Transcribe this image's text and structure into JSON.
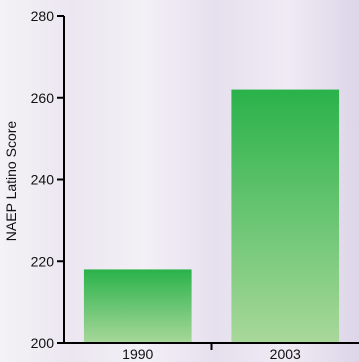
{
  "chart_data": {
    "type": "bar",
    "categories": [
      "1990",
      "2003"
    ],
    "values": [
      218,
      262
    ],
    "title": "",
    "xlabel": "",
    "ylabel": "NAEP Latino Score",
    "ylim": [
      200,
      280
    ],
    "yticks": [
      200,
      220,
      240,
      260,
      280
    ],
    "grid": false,
    "legend": "none",
    "bar_color_top": "#2ab24a",
    "bar_color_bottom": "#a8d89a",
    "axis_color": "#000000"
  }
}
